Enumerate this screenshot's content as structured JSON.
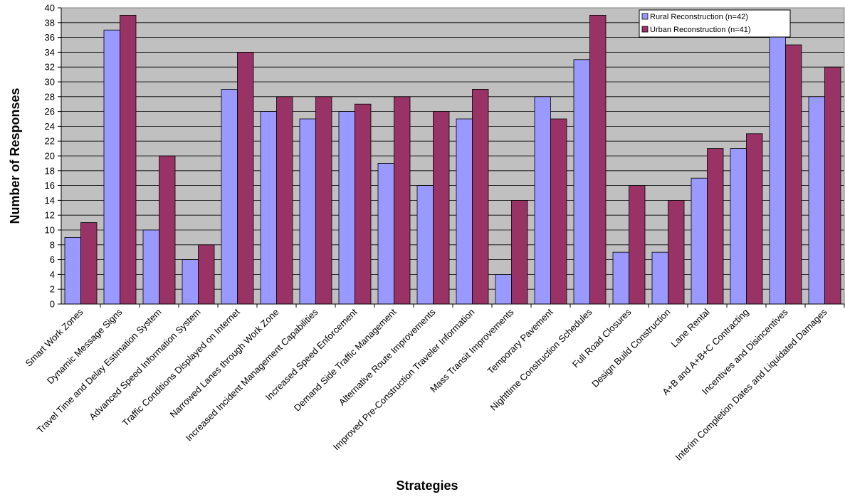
{
  "chart_data": {
    "type": "bar",
    "title": "",
    "xlabel": "Strategies",
    "ylabel": "Number of Responses",
    "ylim": [
      0,
      40
    ],
    "ytick_step": 2,
    "grid": true,
    "legend_position": "top-right",
    "categories": [
      "Smart Work Zones",
      "Dynamic Message Signs",
      "Travel Time and Delay Estimation System",
      "Advanced Speed Information System",
      "Traffic Conditions Displayed on Internet",
      "Narrowed Lanes through Work Zone",
      "Increased Incident Management Capabilities",
      "Increased Speed Enforcement",
      "Demand Side Traffic Management",
      "Alternative Route Improvements",
      "Improved Pre-Construction Traveler Information",
      "Mass Transit Improvements",
      "Temporary Pavement",
      "Nighttime Construction Schedules",
      "Full Road Closures",
      "Design Build Construction",
      "Lane Rental",
      "A+B and A+B+C Contracting",
      "Incentives and Disincentives",
      "Interim Completion Dates and Liquidated Damages"
    ],
    "series": [
      {
        "name": "Rural Reconstruction  (n=42)",
        "color": "#9999ff",
        "values": [
          9,
          37,
          10,
          6,
          29,
          26,
          25,
          26,
          19,
          16,
          25,
          4,
          28,
          33,
          7,
          7,
          17,
          21,
          37,
          28
        ]
      },
      {
        "name": "Urban Reconstruction  (n=41)",
        "color": "#993366",
        "values": [
          11,
          39,
          20,
          8,
          34,
          28,
          28,
          27,
          28,
          26,
          29,
          14,
          25,
          39,
          16,
          14,
          21,
          23,
          35,
          32
        ]
      }
    ],
    "plot_background": "#c0c0c0"
  }
}
